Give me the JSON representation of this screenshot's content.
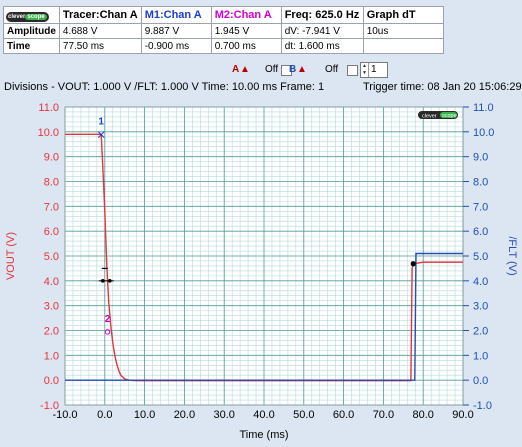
{
  "measure": {
    "logo": {
      "clever": "clever",
      "scope": "scope"
    },
    "headers": {
      "tracer": "Tracer:Chan A",
      "m1": "M1:Chan A",
      "m2": "M2:Chan A",
      "freq": "Freq: 625.0 Hz",
      "graph": "Graph dT"
    },
    "amplitude": {
      "label": "Amplitude",
      "tracer": "4.688 V",
      "m1": "9.887 V",
      "m2": "1.945 V",
      "freq": "dV: -7.941 V",
      "graph": "10us"
    },
    "time": {
      "label": "Time",
      "tracer": "77.50 ms",
      "m1": "-0.900 ms",
      "m2": "0.700 ms",
      "freq": "dt:  1.600 ms",
      "graph": ""
    }
  },
  "controls": {
    "a_label": "A",
    "a_state": "Off",
    "b_label": "B",
    "b_state": "Off",
    "frame_spin_value": "1"
  },
  "info": {
    "divisions": "Divisions -  VOUT: 1.000 V    /FLT: 1.000 V    Time: 10.00 ms  Frame: 1",
    "trigger": "Trigger time: 08 Jan 20 15:06:29"
  },
  "colors": {
    "vout": "#e8333a",
    "flt": "#1f4fb0",
    "marker1": "#1a3fd0",
    "marker2": "#d000d0",
    "grid_major": "#4e9a9a",
    "grid_minor": "#b7dada"
  },
  "chart_data": {
    "type": "line",
    "xlabel": "Time (ms)",
    "ylabel_left": "VOUT (V)",
    "ylabel_right": "/FLT (V)",
    "xlim": [
      -10,
      90
    ],
    "ylim": [
      -1,
      11
    ],
    "x_ticks": [
      "-10.0",
      "0.0",
      "10.0",
      "20.0",
      "30.0",
      "40.0",
      "50.0",
      "60.0",
      "70.0",
      "80.0",
      "90.0"
    ],
    "y_ticks": [
      "-1.0",
      "0.0",
      "1.0",
      "2.0",
      "3.0",
      "4.0",
      "5.0",
      "6.0",
      "7.0",
      "8.0",
      "9.0",
      "10.0",
      "11.0"
    ],
    "grid": true,
    "series": [
      {
        "name": "VOUT",
        "axis": "left",
        "x": [
          -10,
          -1.2,
          -0.9,
          -0.5,
          0,
          0.5,
          1,
          1.5,
          2,
          2.5,
          3,
          3.5,
          4,
          5,
          6,
          8,
          10,
          76.9,
          77.2,
          77.5,
          78,
          80,
          90
        ],
        "y": [
          9.9,
          9.9,
          9.9,
          8.6,
          6.8,
          4.6,
          3.1,
          2.2,
          1.5,
          1.0,
          0.65,
          0.4,
          0.2,
          0.05,
          0.0,
          -0.02,
          -0.02,
          -0.02,
          4.5,
          4.69,
          4.7,
          4.75,
          4.75
        ]
      },
      {
        "name": "/FLT",
        "axis": "right",
        "x": [
          -10,
          77.9,
          78.2,
          90
        ],
        "y": [
          0.0,
          0.0,
          5.1,
          5.1
        ]
      }
    ],
    "markers": [
      {
        "label": "1",
        "x": -0.9,
        "y": 9.887
      },
      {
        "label": "2",
        "x": 0.7,
        "y": 1.945
      }
    ],
    "tracer": {
      "x": 77.5,
      "y": 4.688
    }
  }
}
